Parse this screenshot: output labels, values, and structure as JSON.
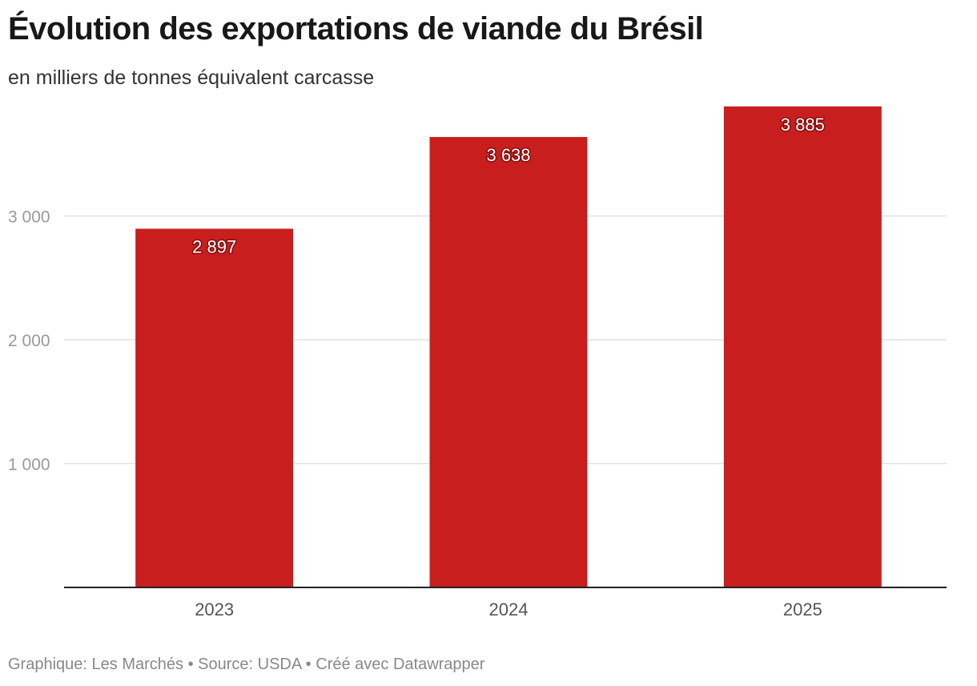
{
  "chart_data": {
    "type": "bar",
    "title": "Évolution des exportations de viande du Brésil",
    "subtitle": "en milliers de tonnes équivalent carcasse",
    "categories": [
      "2023",
      "2024",
      "2025"
    ],
    "values": [
      2897,
      3638,
      3885
    ],
    "value_labels": [
      "2 897",
      "3 638",
      "3 885"
    ],
    "ylim": [
      0,
      4000
    ],
    "yticks": [
      1000,
      2000,
      3000
    ],
    "ytick_labels": [
      "1 000",
      "2 000",
      "3 000"
    ],
    "xlabel": "",
    "ylabel": "",
    "grid": true,
    "bar_color": "#c81e1e",
    "gridline_color": "#e2e2e2",
    "axis_color": "#222222"
  },
  "footer": {
    "credit": "Graphique: Les Marchés",
    "separator": "•",
    "source": "Source: USDA",
    "tool": "Créé avec Datawrapper"
  }
}
